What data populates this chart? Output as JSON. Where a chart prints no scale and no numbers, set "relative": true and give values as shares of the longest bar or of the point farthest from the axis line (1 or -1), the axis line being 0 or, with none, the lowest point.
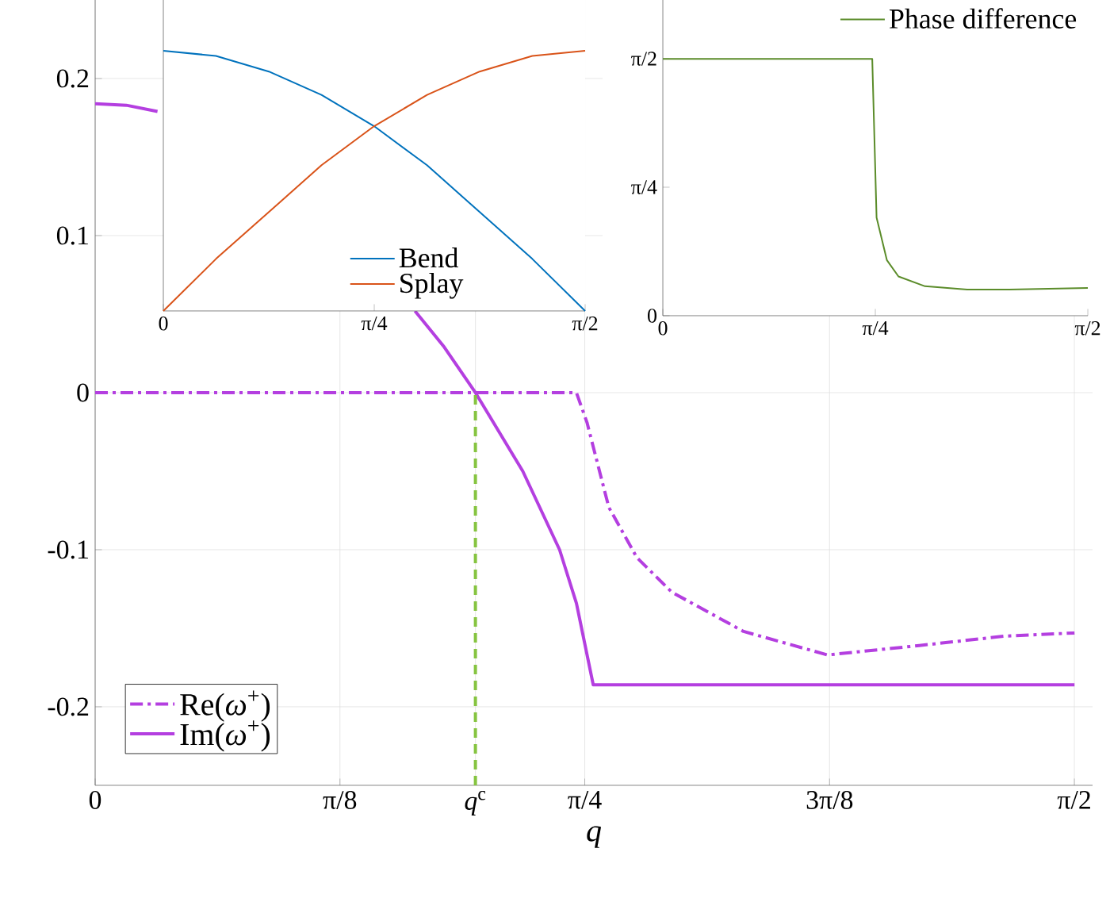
{
  "chart_data": [
    {
      "type": "line",
      "xlabel": "q",
      "xlim": [
        0,
        1.6
      ],
      "ylim": [
        -0.25,
        0.25
      ],
      "xticks": [
        0,
        {
          "value": 0.3927,
          "label": "π/8"
        },
        {
          "value": 0.61,
          "label": "*q*$^{c}$"
        },
        {
          "value": 0.7854,
          "label": "π/4"
        },
        {
          "value": 1.1781,
          "label": "3π/8"
        },
        {
          "value": 1.5708,
          "label": "π/2"
        }
      ],
      "yticks": [
        -0.2,
        -0.1,
        0,
        0.1,
        0.2
      ],
      "grid": true,
      "legend": "bottom left",
      "series": [
        {
          "name": "Re(*ω*$^{+}$)",
          "color": "#b43fe0",
          "line_style": "dashdot",
          "x": [
            0,
            0.772,
            0.789,
            0.824,
            0.869,
            0.925,
            1.04,
            1.175,
            1.322,
            1.459,
            1.571
          ],
          "values": [
            0,
            0,
            -0.019,
            -0.073,
            -0.105,
            -0.127,
            -0.152,
            -0.167,
            -0.161,
            -0.155,
            -0.153
          ]
        },
        {
          "name": "Im(*ω*$^{+}$)",
          "color": "#b43fe0",
          "line_style": "solid",
          "x": [
            0,
            0.05,
            0.1,
            0.3,
            0.513,
            0.56,
            0.61,
            0.686,
            0.745,
            0.772,
            0.799,
            1.571
          ],
          "values": [
            0.184,
            0.183,
            0.179,
            null,
            0.052,
            0.029,
            0,
            -0.05,
            -0.1,
            -0.134,
            -0.186,
            -0.186
          ]
        },
        {
          "color": "#86c440",
          "line_style": "dashed",
          "x": [
            0.61,
            0.61
          ],
          "values": [
            -0.25,
            0
          ]
        }
      ]
    },
    {
      "type": "line",
      "relative": true,
      "tick_labels": "x",
      "xlim": [
        0,
        1.5708
      ],
      "xticks": [
        0,
        {
          "value": 0.7854,
          "label": "π/4"
        },
        {
          "value": 1.5708,
          "label": "π/2"
        }
      ],
      "legend": "bottom",
      "series": [
        {
          "name": "Bend",
          "color": "#0072bd",
          "x": [
            0,
            0.196,
            0.393,
            0.589,
            0.785,
            0.982,
            1.178,
            1.374,
            1.5708
          ],
          "values": [
            1,
            0.98,
            0.92,
            0.83,
            0.71,
            0.56,
            0.38,
            0.2,
            0
          ]
        },
        {
          "name": "Splay",
          "color": "#d95319",
          "x": [
            0,
            0.196,
            0.393,
            0.589,
            0.785,
            0.982,
            1.178,
            1.374,
            1.5708
          ],
          "values": [
            0,
            0.2,
            0.38,
            0.56,
            0.71,
            0.83,
            0.92,
            0.98,
            1
          ]
        }
      ]
    },
    {
      "type": "line",
      "xlim": [
        0,
        1.5708
      ],
      "ylim": [
        0,
        1.93
      ],
      "xticks": [
        0,
        {
          "value": 0.7854,
          "label": "π/4"
        },
        {
          "value": 1.5708,
          "label": "π/2"
        }
      ],
      "yticks": [
        0,
        {
          "value": 0.7854,
          "label": "π/4"
        },
        {
          "value": 1.5708,
          "label": "π/2"
        }
      ],
      "legend": "top right",
      "series": [
        {
          "name": "Phase difference",
          "color": "#5b8c2a",
          "x": [
            0,
            0.774,
            0.79,
            0.828,
            0.871,
            0.969,
            1.125,
            1.281,
            1.5708
          ],
          "values": [
            1.57,
            1.57,
            0.6,
            0.34,
            0.24,
            0.18,
            0.16,
            0.16,
            0.17
          ]
        }
      ]
    }
  ]
}
